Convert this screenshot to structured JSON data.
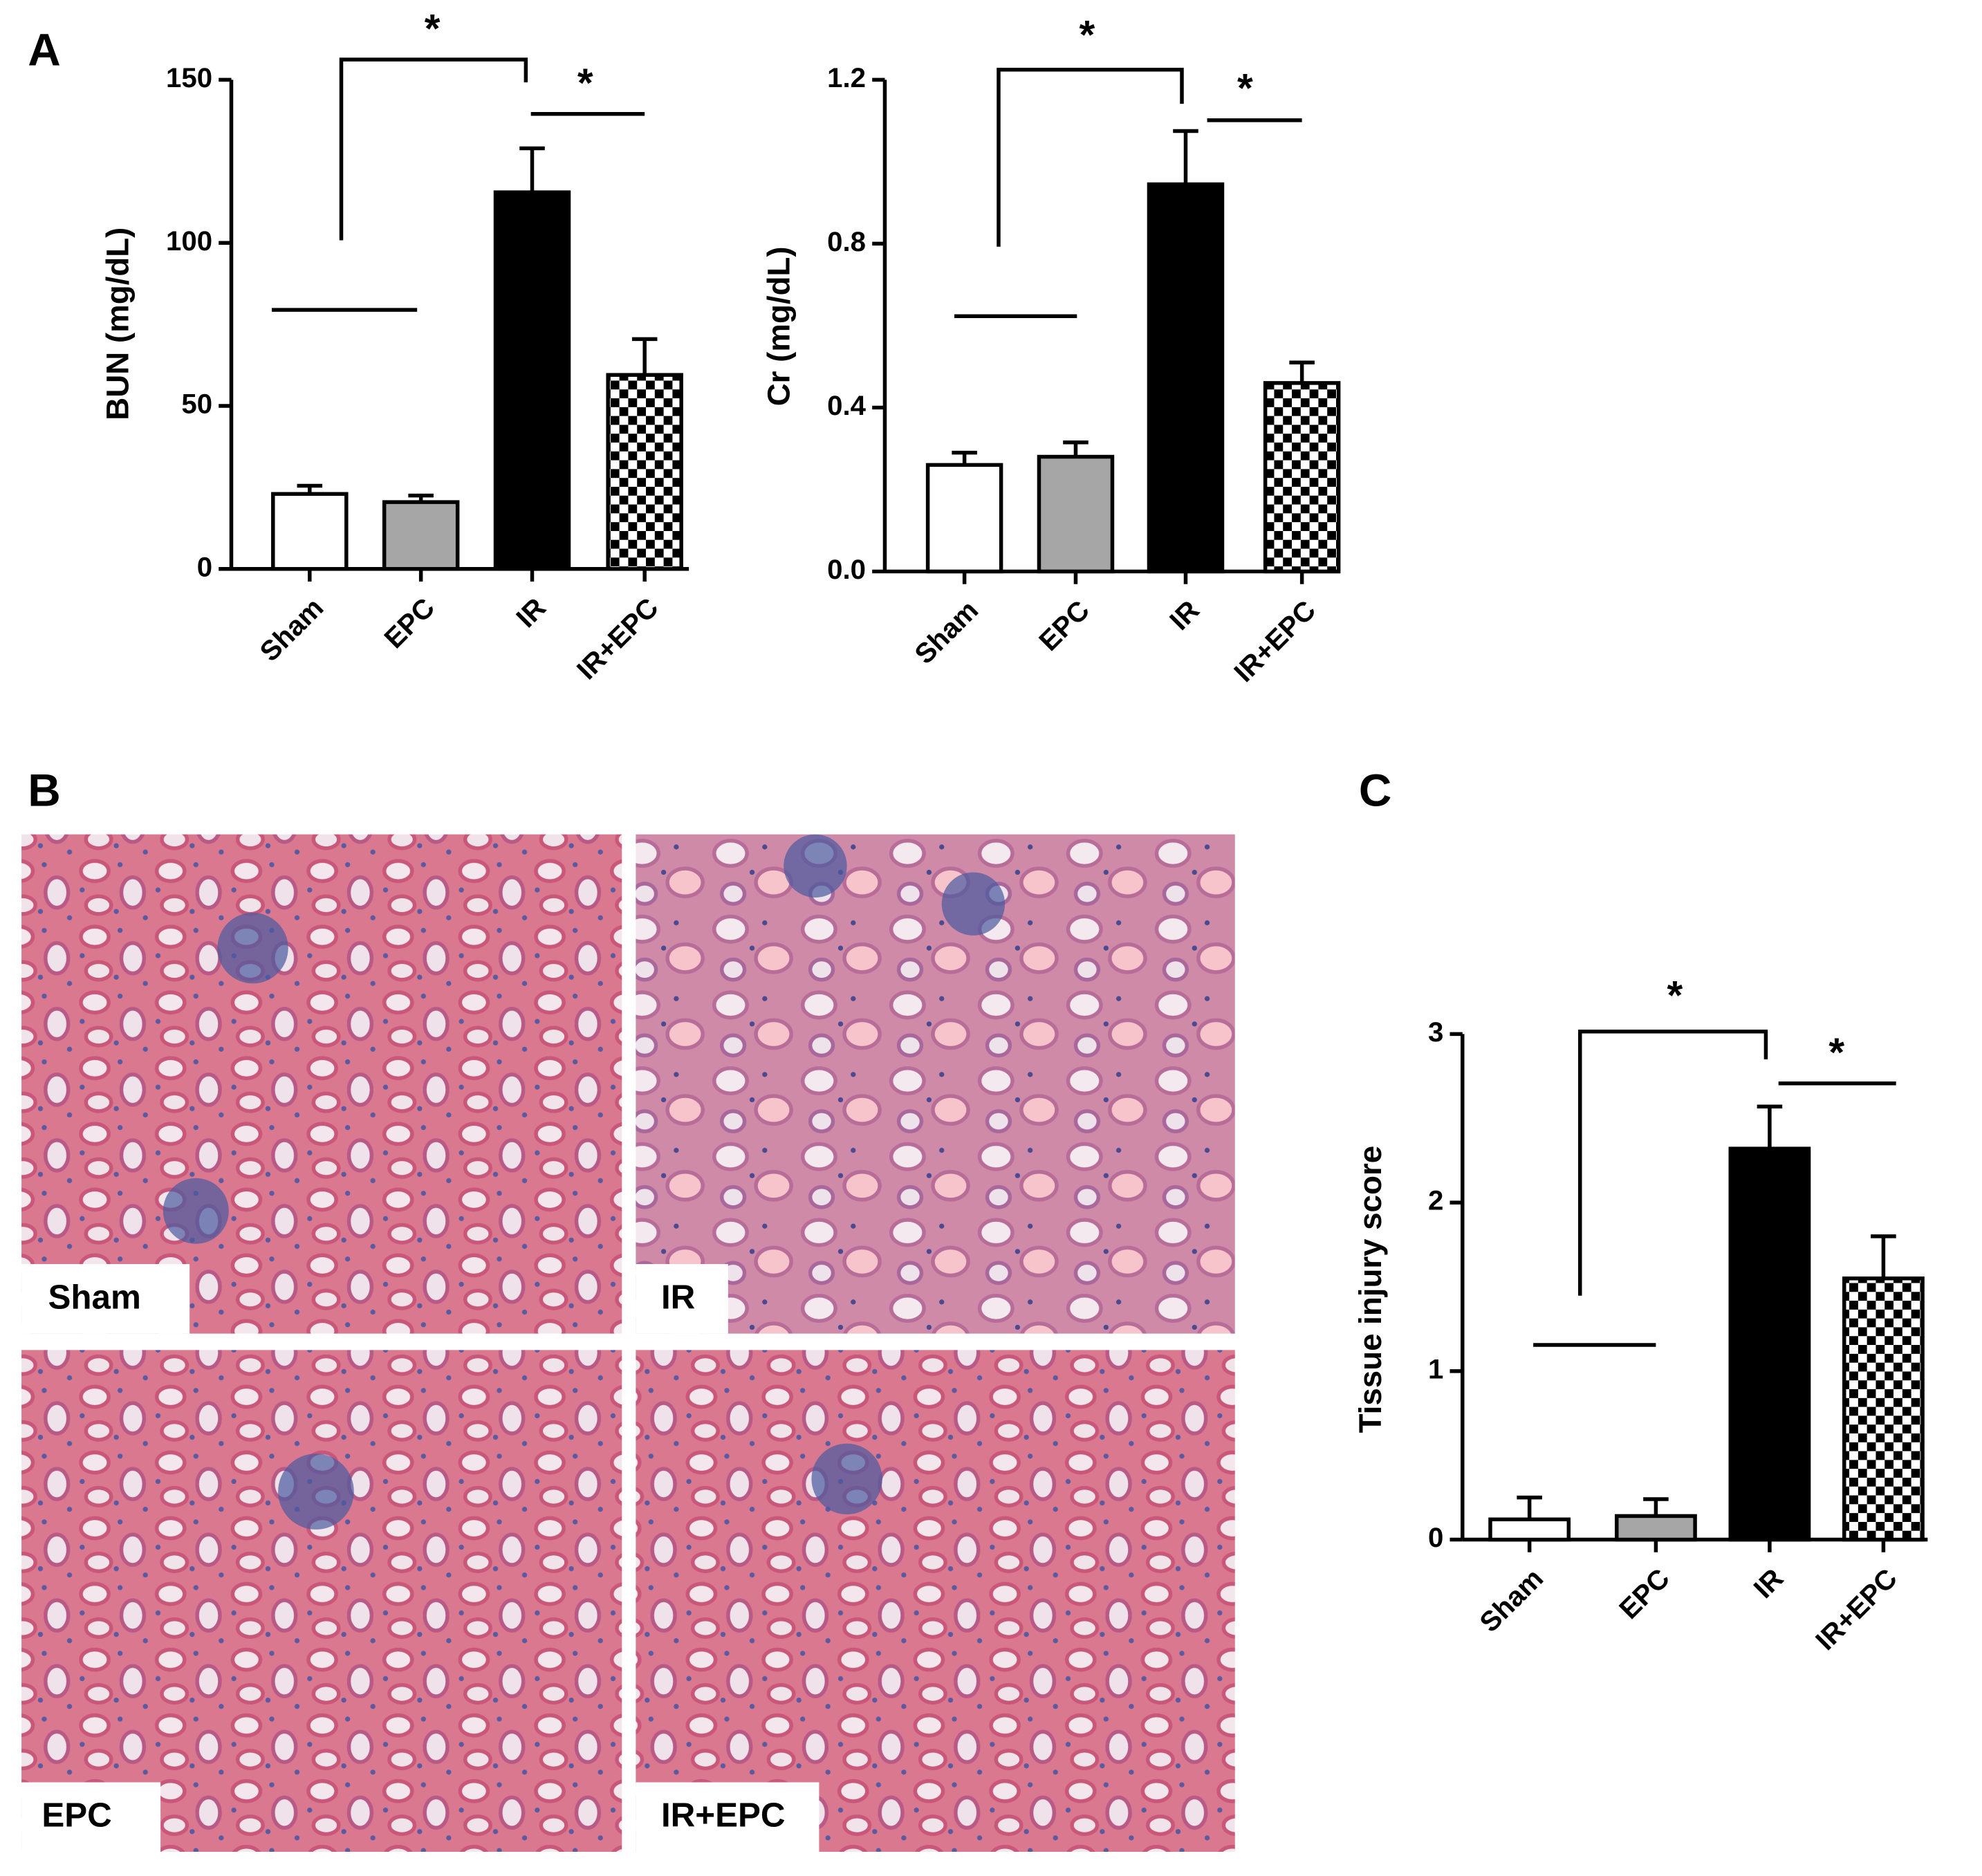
{
  "panel_labels": [
    "A",
    "B",
    "C"
  ],
  "micrograph_labels": [
    "Sham",
    "IR",
    "EPC",
    "IR+EPC"
  ],
  "chart_data": [
    {
      "type": "bar",
      "y_label": "BUN (mg/dL)",
      "categories": [
        "Sham",
        "EPC",
        "IR",
        "IR+EPC"
      ],
      "values": [
        23,
        20.5,
        115.5,
        59.5
      ],
      "errors": [
        2.5,
        2,
        13.5,
        11
      ],
      "bar_fills": [
        "#ffffff",
        "#a6a6a6",
        "#000000",
        "checker"
      ],
      "ylim": [
        0,
        150
      ],
      "yticks": [
        0,
        50,
        100,
        150
      ],
      "annotations": [
        "*",
        "*"
      ]
    },
    {
      "type": "bar",
      "y_label": "Cr (mg/dL)",
      "categories": [
        "Sham",
        "EPC",
        "IR",
        "IR+EPC"
      ],
      "values": [
        0.26,
        0.28,
        0.945,
        0.46
      ],
      "errors": [
        0.03,
        0.035,
        0.13,
        0.05
      ],
      "bar_fills": [
        "#ffffff",
        "#a6a6a6",
        "#000000",
        "checker"
      ],
      "ylim": [
        0,
        1.2
      ],
      "yticks": [
        {
          "value": 0,
          "label": "0.0"
        },
        0.4,
        0.8,
        1.2
      ],
      "annotations": [
        "*",
        "*"
      ]
    },
    {
      "type": "bar",
      "y_label": "Tissue injury score",
      "categories": [
        "Sham",
        "EPC",
        "IR",
        "IR+EPC"
      ],
      "values": [
        0.12,
        0.14,
        2.32,
        1.55
      ],
      "errors": [
        0.13,
        0.1,
        0.25,
        0.25
      ],
      "bar_fills": [
        "#ffffff",
        "#a6a6a6",
        "#000000",
        "checker"
      ],
      "ylim": [
        0,
        3
      ],
      "yticks": [
        0,
        1,
        2,
        3
      ],
      "annotations": [
        "*",
        "*"
      ]
    }
  ]
}
